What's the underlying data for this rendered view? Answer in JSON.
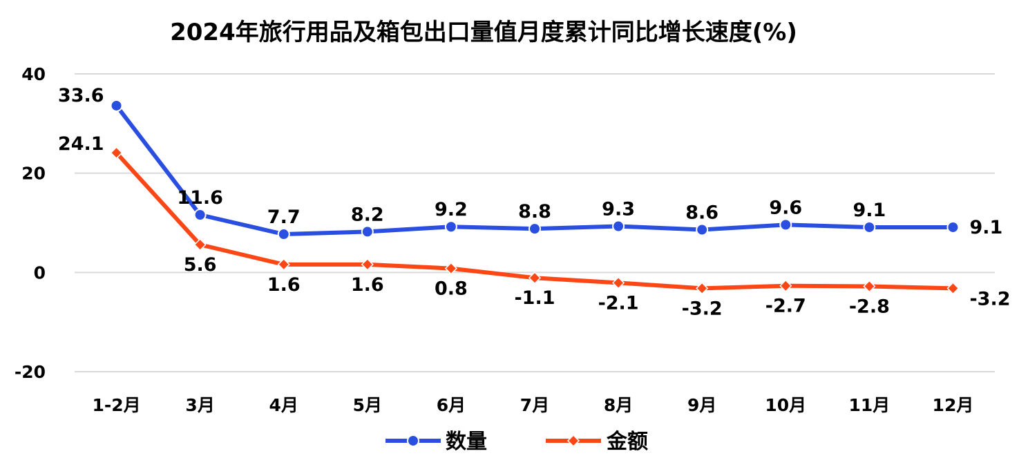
{
  "chart_data": {
    "type": "line",
    "title": "2024年旅行用品及箱包出口量值月度累计同比增长速度(%)",
    "categories": [
      "1-2月",
      "3月",
      "4月",
      "5月",
      "6月",
      "7月",
      "8月",
      "9月",
      "10月",
      "11月",
      "12月"
    ],
    "series": [
      {
        "name": "数量",
        "color": "#2a4fe0",
        "marker": "circle",
        "values": [
          33.6,
          11.6,
          7.7,
          8.2,
          9.2,
          8.8,
          9.3,
          8.6,
          9.6,
          9.1,
          9.1
        ],
        "labels": [
          "33.6",
          "11.6",
          "7.7",
          "8.2",
          "9.2",
          "8.8",
          "9.3",
          "8.6",
          "9.6",
          "9.1",
          "9.1"
        ]
      },
      {
        "name": "金额",
        "color": "#fb4716",
        "marker": "diamond",
        "values": [
          24.1,
          5.6,
          1.6,
          1.6,
          0.8,
          -1.1,
          -2.1,
          -3.2,
          -2.7,
          -2.8,
          -3.2
        ],
        "labels": [
          "24.1",
          "5.6",
          "1.6",
          "1.6",
          "0.8",
          "-1.1",
          "-2.1",
          "-3.2",
          "-2.7",
          "-2.8",
          "-3.2"
        ]
      }
    ],
    "ylim": [
      -20,
      40
    ],
    "yticks": [
      "-20",
      "0",
      "20",
      "40"
    ],
    "ytick_values": [
      -20,
      0,
      20,
      40
    ],
    "grid": true,
    "legend": "bottom-center"
  }
}
